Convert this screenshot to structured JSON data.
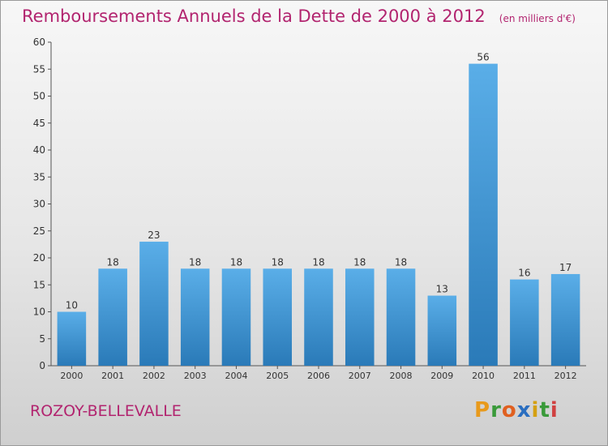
{
  "header": {
    "title": "Remboursements Annuels de la Dette de 2000 à 2012",
    "unit": "(en milliers d'€)"
  },
  "footer": {
    "place": "ROZOY-BELLEVALLE",
    "logo": {
      "letters": [
        "P",
        "r",
        "o",
        "x",
        "i",
        "t",
        "i"
      ],
      "colors": [
        "#e89a1c",
        "#3a9a3a",
        "#e06020",
        "#2a6ec0",
        "#d4a010",
        "#3a9a3a",
        "#d04040"
      ]
    }
  },
  "chart_data": {
    "type": "bar",
    "categories": [
      "2000",
      "2001",
      "2002",
      "2003",
      "2004",
      "2005",
      "2006",
      "2007",
      "2008",
      "2009",
      "2010",
      "2011",
      "2012"
    ],
    "values": [
      10,
      18,
      23,
      18,
      18,
      18,
      18,
      18,
      18,
      13,
      56,
      16,
      17
    ],
    "title": "Remboursements Annuels de la Dette de 2000 à 2012",
    "xlabel": "",
    "ylabel": "",
    "ylim": [
      0,
      60
    ],
    "yticks": [
      0,
      5,
      10,
      15,
      20,
      25,
      30,
      35,
      40,
      45,
      50,
      55,
      60
    ],
    "grid": false,
    "bar_color": "#4a9ad8"
  }
}
